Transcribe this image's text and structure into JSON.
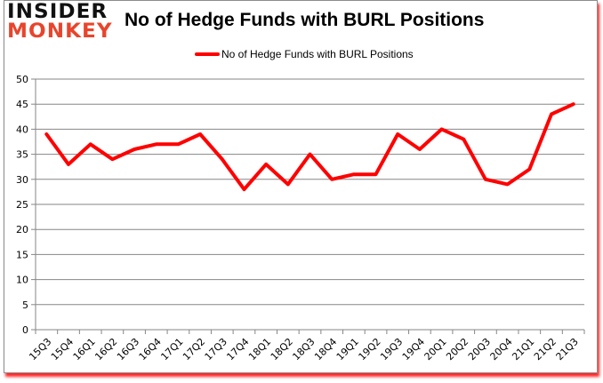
{
  "logo": {
    "line1": "INSIDER",
    "line2": "MONKEY"
  },
  "chart_data": {
    "type": "line",
    "title": "No of Hedge Funds with BURL Positions",
    "xlabel": "",
    "ylabel": "",
    "ylim": [
      0,
      50
    ],
    "yticks": [
      0,
      5,
      10,
      15,
      20,
      25,
      30,
      35,
      40,
      45,
      50
    ],
    "grid": true,
    "legend_position": "top",
    "categories": [
      "15Q3",
      "15Q4",
      "16Q1",
      "16Q2",
      "16Q3",
      "16Q4",
      "17Q1",
      "17Q2",
      "17Q3",
      "17Q4",
      "18Q1",
      "18Q2",
      "18Q3",
      "18Q4",
      "19Q1",
      "19Q2",
      "19Q3",
      "19Q4",
      "20Q1",
      "20Q2",
      "20Q3",
      "20Q4",
      "21Q1",
      "21Q2",
      "21Q3"
    ],
    "series": [
      {
        "name": "No of Hedge Funds with BURL Positions",
        "color": "#ff0000",
        "values": [
          39,
          33,
          37,
          34,
          36,
          37,
          37,
          39,
          34,
          28,
          33,
          29,
          35,
          30,
          31,
          31,
          39,
          36,
          40,
          38,
          30,
          29,
          32,
          43,
          45
        ]
      }
    ]
  },
  "colors": {
    "line": "#ff0000",
    "grid": "#868686",
    "frame_shadow": "#ff0000",
    "logo_accent": "#e8452c"
  }
}
